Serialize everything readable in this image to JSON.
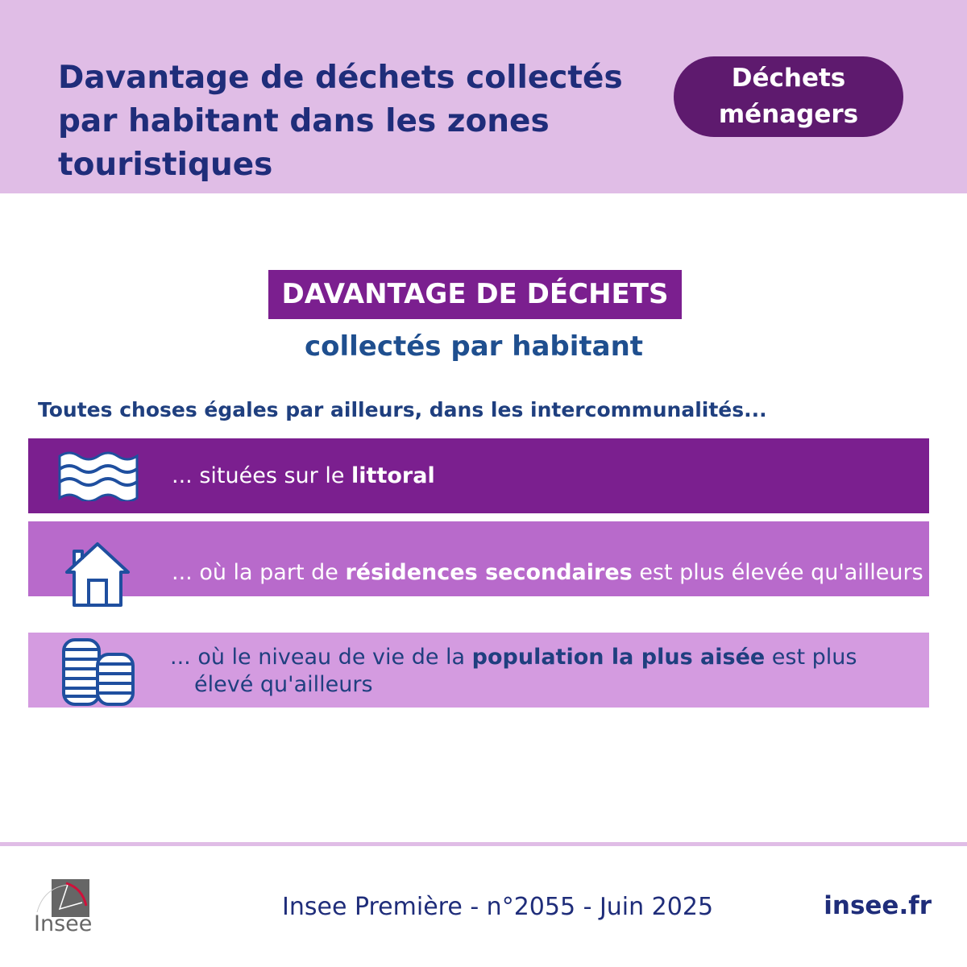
{
  "header": {
    "title": "Davantage de déchets collectés par habitant dans les zones touristiques",
    "badge": "Déchets ménagers"
  },
  "banner": {
    "title": "DAVANTAGE DE DÉCHETS",
    "subtitle": "collectés par habitant"
  },
  "lead": "Toutes choses égales par ailleurs, dans les intercommunalités...",
  "rows": [
    {
      "icon": "waves-icon",
      "pre": "... situées sur le ",
      "bold": "littoral",
      "post": "",
      "color": "#7b1f8f"
    },
    {
      "icon": "house-icon",
      "pre": "... où la part de ",
      "bold": "résidences secondaires",
      "post": " est plus élevée qu'ailleurs",
      "color": "#b86acb"
    },
    {
      "icon": "coins-icon",
      "pre": "... où le niveau de vie de la ",
      "bold": "population la plus aisée",
      "post": " est plus élevé qu'ailleurs",
      "color": "#d49be0"
    }
  ],
  "footer": {
    "reference": "Insee Première - n°2055 - Juin 2025",
    "site": "insee.fr",
    "logo": "Insee"
  }
}
